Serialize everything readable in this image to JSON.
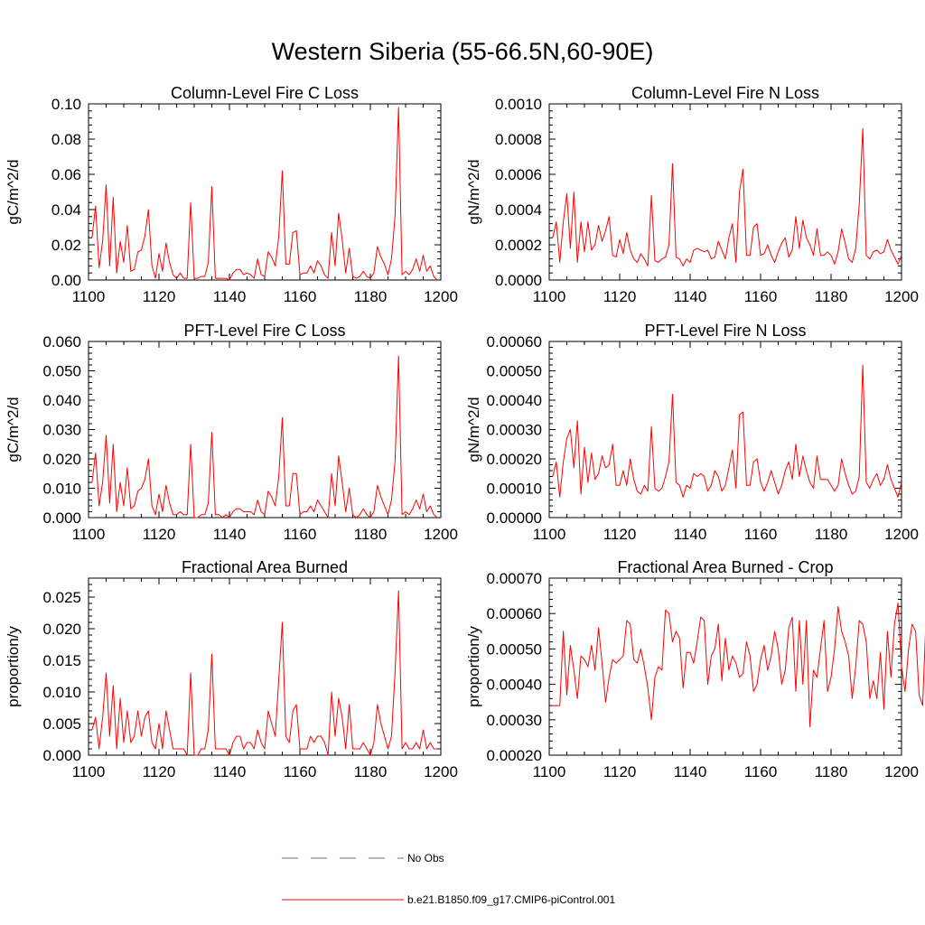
{
  "figure_title": "Western Siberia (55-66.5N,60-90E)",
  "colors": {
    "series": "#ff0000",
    "no_obs": "#6666bb",
    "axis": "#000000"
  },
  "legend": {
    "items": [
      {
        "label": "No Obs",
        "style": "dashed",
        "color": "#6666bb"
      },
      {
        "label": "b.e21.B1850.f09_g17.CMIP6-piControl.001",
        "style": "solid",
        "color": "#ff0000"
      }
    ]
  },
  "chart_data": [
    {
      "type": "line",
      "title": "Column-Level Fire C Loss",
      "ylabel": "gC/m^2/d",
      "xlabel": "",
      "xlim": [
        1100,
        1200
      ],
      "ylim": [
        0,
        0.1
      ],
      "xticks": [
        1100,
        1120,
        1140,
        1160,
        1180,
        1200
      ],
      "yticks": [
        0,
        0.02,
        0.04,
        0.06,
        0.08,
        0.1
      ],
      "ytick_labels": [
        "0.00",
        "0.02",
        "0.04",
        "0.06",
        "0.08",
        "0.10"
      ],
      "x_start": 1101,
      "series": [
        {
          "name": "b.e21.B1850.f09_g17.CMIP6-piControl.001",
          "values": [
            0.024,
            0.042,
            0.007,
            0.022,
            0.054,
            0.008,
            0.047,
            0.004,
            0.022,
            0.01,
            0.031,
            0.005,
            0.006,
            0.016,
            0.017,
            0.025,
            0.04,
            0.008,
            0.001,
            0.015,
            0.005,
            0.021,
            0.01,
            0.003,
            0.001,
            0.004,
            0.001,
            0.001,
            0.044,
            0.001,
            0.001,
            0.002,
            0.002,
            0.01,
            0.053,
            0.001,
            0.001,
            0.001,
            0.001,
            0.0,
            0.004,
            0.006,
            0.006,
            0.003,
            0.004,
            0.003,
            0.001,
            0.012,
            0.003,
            0.002,
            0.016,
            0.013,
            0.008,
            0.025,
            0.062,
            0.009,
            0.009,
            0.027,
            0.028,
            0.003,
            0.004,
            0.004,
            0.008,
            0.004,
            0.011,
            0.008,
            0.003,
            0.001,
            0.027,
            0.008,
            0.038,
            0.023,
            0.004,
            0.018,
            0.002,
            0.001,
            0.002,
            0.005,
            0.002,
            0.001,
            0.004,
            0.019,
            0.013,
            0.009,
            0.003,
            0.012,
            0.036,
            0.098,
            0.003,
            0.005,
            0.003,
            0.006,
            0.012,
            0.005,
            0.014,
            0.005,
            0.008,
            0.002,
            0.0
          ]
        }
      ]
    },
    {
      "type": "line",
      "title": "Column-Level Fire N Loss",
      "ylabel": "gN/m^2/d",
      "xlabel": "",
      "xlim": [
        1100,
        1200
      ],
      "ylim": [
        0,
        0.001
      ],
      "xticks": [
        1100,
        1120,
        1140,
        1160,
        1180,
        1200
      ],
      "yticks": [
        0,
        0.0002,
        0.0004,
        0.0006,
        0.0008,
        0.001
      ],
      "ytick_labels": [
        "0.0000",
        "0.0002",
        "0.0004",
        "0.0006",
        "0.0008",
        "0.0010"
      ],
      "x_start": 1101,
      "series": [
        {
          "name": "b.e21.B1850.f09_g17.CMIP6-piControl.001",
          "values": [
            0.00024,
            0.00033,
            0.0001,
            0.00033,
            0.00049,
            0.00018,
            0.0005,
            0.0001,
            0.00033,
            0.00016,
            0.00033,
            0.00017,
            0.0002,
            0.00031,
            0.00022,
            0.00028,
            0.00036,
            0.00014,
            0.00013,
            0.00023,
            0.00015,
            0.00027,
            0.00017,
            0.00012,
            0.0001,
            0.00015,
            0.00012,
            8e-05,
            0.00048,
            0.00011,
            0.0001,
            0.00012,
            0.00013,
            0.0002,
            0.00066,
            0.00013,
            0.00012,
            8e-05,
            0.00012,
            0.0001,
            0.00017,
            0.00018,
            0.00017,
            0.00016,
            0.00017,
            0.00012,
            0.00013,
            0.00022,
            0.00017,
            0.00012,
            0.00024,
            0.00032,
            0.0001,
            0.0005,
            0.00063,
            0.00014,
            0.00014,
            0.0003,
            0.00032,
            0.00014,
            0.00015,
            0.0002,
            0.00014,
            0.0001,
            0.00016,
            0.00021,
            0.00024,
            0.00013,
            0.00017,
            0.00036,
            0.00018,
            0.00034,
            0.00024,
            0.0002,
            0.00014,
            0.00029,
            0.00014,
            0.00014,
            0.00016,
            0.00014,
            9e-05,
            0.00016,
            0.00029,
            0.00021,
            0.00012,
            0.0001,
            0.00018,
            0.00043,
            0.00086,
            0.00014,
            0.00012,
            0.00016,
            0.00017,
            0.00015,
            0.00016,
            0.00023,
            0.00017,
            0.00013,
            9e-05,
            0.00014
          ]
        }
      ]
    },
    {
      "type": "line",
      "title": "PFT-Level Fire C Loss",
      "ylabel": "gC/m^2/d",
      "xlabel": "",
      "xlim": [
        1100,
        1200
      ],
      "ylim": [
        0,
        0.06
      ],
      "xticks": [
        1100,
        1120,
        1140,
        1160,
        1180,
        1200
      ],
      "yticks": [
        0,
        0.01,
        0.02,
        0.03,
        0.04,
        0.05,
        0.06
      ],
      "ytick_labels": [
        "0.000",
        "0.010",
        "0.020",
        "0.030",
        "0.040",
        "0.050",
        "0.060"
      ],
      "x_start": 1101,
      "series": [
        {
          "name": "b.e21.B1850.f09_g17.CMIP6-piControl.001",
          "values": [
            0.012,
            0.022,
            0.004,
            0.012,
            0.028,
            0.005,
            0.025,
            0.002,
            0.012,
            0.004,
            0.017,
            0.003,
            0.004,
            0.009,
            0.01,
            0.013,
            0.02,
            0.004,
            0.001,
            0.008,
            0.002,
            0.011,
            0.005,
            0.001,
            0.001,
            0.002,
            0.001,
            0.001,
            0.025,
            0.0,
            0.0,
            0.001,
            0.001,
            0.005,
            0.029,
            0.001,
            0.001,
            0.0,
            0.001,
            0.0,
            0.002,
            0.003,
            0.003,
            0.002,
            0.002,
            0.002,
            0.001,
            0.006,
            0.002,
            0.001,
            0.009,
            0.007,
            0.004,
            0.014,
            0.034,
            0.004,
            0.004,
            0.015,
            0.015,
            0.001,
            0.002,
            0.002,
            0.004,
            0.002,
            0.006,
            0.004,
            0.002,
            0.0,
            0.015,
            0.004,
            0.021,
            0.012,
            0.002,
            0.01,
            0.001,
            0.0,
            0.001,
            0.003,
            0.001,
            0.0,
            0.002,
            0.011,
            0.007,
            0.004,
            0.001,
            0.006,
            0.019,
            0.055,
            0.001,
            0.002,
            0.001,
            0.003,
            0.006,
            0.003,
            0.008,
            0.002,
            0.004,
            0.001,
            0.0
          ]
        }
      ]
    },
    {
      "type": "line",
      "title": "PFT-Level Fire N Loss",
      "ylabel": "gN/m^2/d",
      "xlabel": "",
      "xlim": [
        1100,
        1200
      ],
      "ylim": [
        0,
        0.0006
      ],
      "xticks": [
        1100,
        1120,
        1140,
        1160,
        1180,
        1200
      ],
      "yticks": [
        0,
        0.0001,
        0.0002,
        0.0003,
        0.0004,
        0.0005,
        0.0006
      ],
      "ytick_labels": [
        "0.00000",
        "0.00010",
        "0.00020",
        "0.00030",
        "0.00040",
        "0.00050",
        "0.00060"
      ],
      "x_start": 1101,
      "series": [
        {
          "name": "b.e21.B1850.f09_g17.CMIP6-piControl.001",
          "values": [
            0.00014,
            0.00019,
            7e-05,
            0.00019,
            0.00027,
            0.0003,
            0.00017,
            0.00033,
            8e-05,
            0.00024,
            0.00012,
            0.00022,
            0.00013,
            0.00015,
            0.00021,
            0.00017,
            0.00018,
            0.00025,
            0.00011,
            0.00011,
            0.00016,
            0.00011,
            0.0002,
            0.00013,
            9e-05,
            8e-05,
            0.00011,
            9e-05,
            0.00031,
            0.0001,
            9e-05,
            0.0001,
            0.00014,
            0.00019,
            0.00042,
            0.00012,
            0.00011,
            7e-05,
            0.00011,
            0.0001,
            0.00015,
            0.00014,
            0.00015,
            0.00014,
            9e-05,
            0.00011,
            0.00016,
            0.00014,
            9e-05,
            0.00011,
            0.00017,
            0.00023,
            0.0001,
            0.00035,
            0.00036,
            0.00011,
            0.00011,
            0.00019,
            0.0002,
            0.00012,
            9e-05,
            0.00012,
            0.00016,
            0.00012,
            8e-05,
            0.00011,
            0.00016,
            0.00019,
            0.00013,
            0.00025,
            0.00014,
            0.00021,
            0.00016,
            0.00012,
            0.0001,
            0.00021,
            0.00013,
            0.00013,
            0.00013,
            0.00011,
            9e-05,
            0.00011,
            0.0002,
            0.00015,
            0.00011,
            8e-05,
            9e-05,
            0.00014,
            0.00052,
            0.00012,
            0.0001,
            0.00013,
            0.00015,
            0.00011,
            0.00013,
            0.00018,
            0.00013,
            0.0001,
            7e-05,
            0.00012
          ]
        }
      ]
    },
    {
      "type": "line",
      "title": "Fractional Area Burned",
      "ylabel": "proportion/y",
      "xlabel": "",
      "xlim": [
        1100,
        1200
      ],
      "ylim": [
        0,
        0.028
      ],
      "xticks": [
        1100,
        1120,
        1140,
        1160,
        1180,
        1200
      ],
      "yticks": [
        0,
        0.005,
        0.01,
        0.015,
        0.02,
        0.025
      ],
      "ytick_labels": [
        "0.000",
        "0.005",
        "0.010",
        "0.015",
        "0.020",
        "0.025"
      ],
      "x_start": 1101,
      "series": [
        {
          "name": "b.e21.B1850.f09_g17.CMIP6-piControl.001",
          "values": [
            0.004,
            0.006,
            0.001,
            0.006,
            0.013,
            0.003,
            0.011,
            0.001,
            0.009,
            0.002,
            0.007,
            0.002,
            0.003,
            0.007,
            0.003,
            0.006,
            0.007,
            0.002,
            0.001,
            0.005,
            0.001,
            0.007,
            0.004,
            0.001,
            0.001,
            0.001,
            0.001,
            0.0,
            0.013,
            0.0,
            0.0,
            0.001,
            0.001,
            0.004,
            0.016,
            0.001,
            0.001,
            0.001,
            0.001,
            0.0,
            0.002,
            0.003,
            0.003,
            0.001,
            0.002,
            0.002,
            0.001,
            0.004,
            0.002,
            0.001,
            0.007,
            0.005,
            0.003,
            0.012,
            0.021,
            0.003,
            0.002,
            0.007,
            0.008,
            0.001,
            0.001,
            0.001,
            0.003,
            0.002,
            0.003,
            0.003,
            0.002,
            0.0,
            0.01,
            0.003,
            0.009,
            0.006,
            0.001,
            0.008,
            0.001,
            0.001,
            0.001,
            0.002,
            0.001,
            0.0,
            0.002,
            0.008,
            0.005,
            0.003,
            0.001,
            0.003,
            0.013,
            0.026,
            0.001,
            0.002,
            0.001,
            0.001,
            0.002,
            0.001,
            0.004,
            0.001,
            0.002,
            0.001,
            0.001
          ]
        }
      ]
    },
    {
      "type": "line",
      "title": "Fractional Area Burned - Crop",
      "ylabel": "proportion/y",
      "xlabel": "",
      "xlim": [
        1100,
        1200
      ],
      "ylim": [
        0.0002,
        0.0007
      ],
      "xticks": [
        1100,
        1120,
        1140,
        1160,
        1180,
        1200
      ],
      "yticks": [
        0.0002,
        0.0003,
        0.0004,
        0.0005,
        0.0006,
        0.0007
      ],
      "ytick_labels": [
        "0.00020",
        "0.00030",
        "0.00040",
        "0.00050",
        "0.00060",
        "0.00070"
      ],
      "x_start": 1101,
      "series": [
        {
          "name": "b.e21.B1850.f09_g17.CMIP6-piControl.001",
          "values": [
            0.00034,
            0.00034,
            0.00034,
            0.00055,
            0.00037,
            0.00051,
            0.00044,
            0.00036,
            0.00048,
            0.00047,
            0.00045,
            0.00051,
            0.00044,
            0.00056,
            0.00046,
            0.00035,
            0.00042,
            0.00047,
            0.00046,
            0.00047,
            0.00048,
            0.00058,
            0.00057,
            0.00047,
            0.00046,
            0.0005,
            0.00045,
            0.00039,
            0.0003,
            0.00042,
            0.00045,
            0.00044,
            0.00061,
            0.0006,
            0.00052,
            0.00055,
            0.00053,
            0.00039,
            0.00049,
            0.00049,
            0.00046,
            0.00052,
            0.00059,
            0.00058,
            0.0004,
            0.00048,
            0.0005,
            0.00057,
            0.00041,
            0.00053,
            0.00044,
            0.00048,
            0.00046,
            0.00042,
            0.00043,
            0.00052,
            0.00048,
            0.00038,
            0.0004,
            0.00047,
            0.00051,
            0.00044,
            0.00048,
            0.00055,
            0.0005,
            0.0004,
            0.00044,
            0.00056,
            0.00059,
            0.00038,
            0.00058,
            0.0004,
            0.00058,
            0.00028,
            0.00044,
            0.00042,
            0.0005,
            0.00058,
            0.00038,
            0.00042,
            0.0005,
            0.00062,
            0.00055,
            0.00052,
            0.00048,
            0.00036,
            0.00045,
            0.00058,
            0.00057,
            0.00052,
            0.00036,
            0.00041,
            0.00036,
            0.00049,
            0.00033,
            0.00055,
            0.00042,
            0.00057,
            0.00063,
            0.00045,
            0.00038,
            0.0005,
            0.00057,
            0.00055,
            0.00037,
            0.00034,
            0.0006
          ]
        }
      ]
    }
  ]
}
